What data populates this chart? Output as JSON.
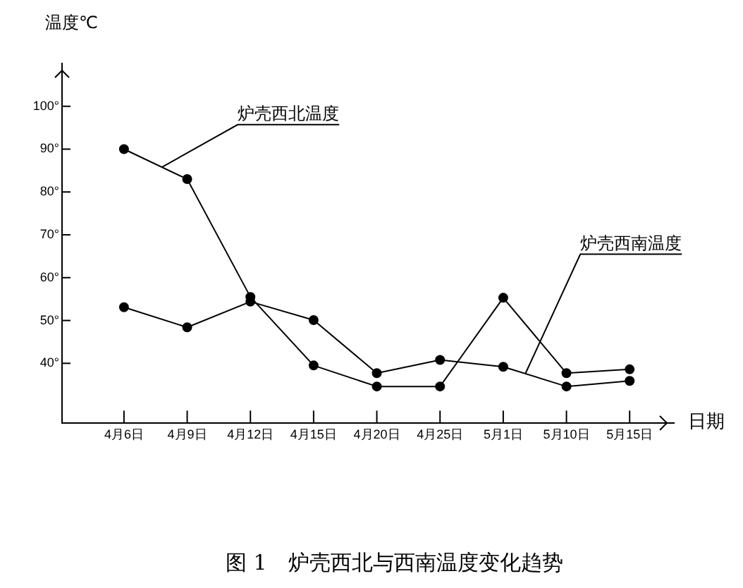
{
  "chart_data": {
    "type": "line",
    "title": "图 1　炉壳西北与西南温度变化趋势",
    "xlabel": "日期",
    "ylabel": "温度℃",
    "categories": [
      "4月6日",
      "4月9日",
      "4月12日",
      "4月15日",
      "4月20日",
      "4月25日",
      "5月1日",
      "5月10日",
      "5月15日"
    ],
    "series": [
      {
        "name": "炉壳西北温度",
        "color": "#000000",
        "values": [
          90,
          83,
          55.5,
          39.5,
          34.6,
          34.6,
          55.3,
          37.7,
          38.6
        ]
      },
      {
        "name": "炉壳西南温度",
        "color": "#000000",
        "values": [
          53.1,
          48.4,
          54.4,
          50.1,
          37.7,
          40.8,
          39.2,
          34.6,
          35.9
        ]
      }
    ],
    "ylim": [
      26,
      110
    ],
    "yticks": [
      {
        "value": 40,
        "label": "40°"
      },
      {
        "value": 50,
        "label": "50°"
      },
      {
        "value": 60,
        "label": "60°"
      },
      {
        "value": 70,
        "label": "70°"
      },
      {
        "value": 80,
        "label": "80°"
      },
      {
        "value": 90,
        "label": "90°"
      },
      {
        "value": 100,
        "label": "100°"
      }
    ],
    "grid": false,
    "legend": false,
    "marker": "circle",
    "line_style": "solid"
  }
}
